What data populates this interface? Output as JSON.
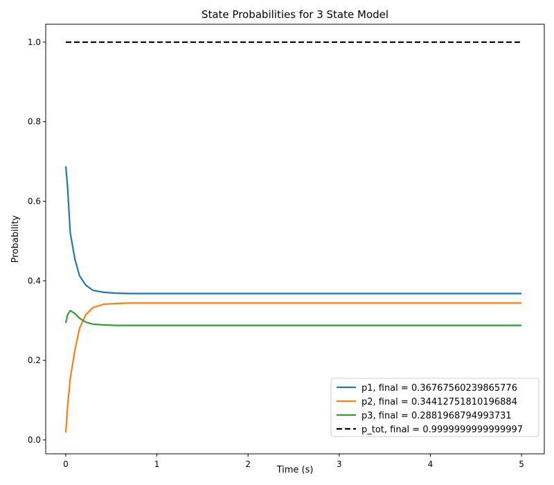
{
  "chart_data": {
    "type": "line",
    "title": "State Probabilities for 3 State Model",
    "xlabel": "Time (s)",
    "ylabel": "Probability",
    "xlim": [
      -0.22,
      5.25
    ],
    "ylim": [
      -0.035,
      1.045
    ],
    "xticks": [
      0,
      1,
      2,
      3,
      4,
      5
    ],
    "xtick_labels": [
      "0",
      "1",
      "2",
      "3",
      "4",
      "5"
    ],
    "yticks": [
      0.0,
      0.2,
      0.4,
      0.6,
      0.8,
      1.0
    ],
    "ytick_labels": [
      "0.0",
      "0.2",
      "0.4",
      "0.6",
      "0.8",
      "1.0"
    ],
    "grid": false,
    "legend_position": "lower-right",
    "series": [
      {
        "name": "p1, final = 0.36767560239865776",
        "color": "#1f77b4",
        "dash": "solid",
        "x": [
          0,
          0.02,
          0.05,
          0.1,
          0.15,
          0.22,
          0.3,
          0.42,
          0.55,
          0.7,
          1.0,
          1.5,
          2.0,
          2.5,
          3.0,
          3.5,
          4.0,
          4.5,
          5.0
        ],
        "y": [
          0.688,
          0.635,
          0.52,
          0.455,
          0.413,
          0.389,
          0.376,
          0.371,
          0.369,
          0.368,
          0.368,
          0.368,
          0.368,
          0.368,
          0.368,
          0.368,
          0.368,
          0.368,
          0.368
        ]
      },
      {
        "name": "p2, final = 0.34412751810196884",
        "color": "#ff7f0e",
        "dash": "solid",
        "x": [
          0,
          0.02,
          0.05,
          0.1,
          0.15,
          0.22,
          0.3,
          0.42,
          0.55,
          0.7,
          1.0,
          1.5,
          2.0,
          2.5,
          3.0,
          3.5,
          4.0,
          4.5,
          5.0
        ],
        "y": [
          0.018,
          0.085,
          0.155,
          0.225,
          0.28,
          0.315,
          0.333,
          0.341,
          0.343,
          0.344,
          0.344,
          0.344,
          0.344,
          0.344,
          0.344,
          0.344,
          0.344,
          0.344,
          0.344
        ]
      },
      {
        "name": "p3, final = 0.2881968794993731",
        "color": "#2ca02c",
        "dash": "solid",
        "x": [
          0,
          0.02,
          0.05,
          0.1,
          0.15,
          0.22,
          0.3,
          0.42,
          0.55,
          0.7,
          1.0,
          1.5,
          2.0,
          2.5,
          3.0,
          3.5,
          4.0,
          4.5,
          5.0
        ],
        "y": [
          0.294,
          0.315,
          0.325,
          0.318,
          0.306,
          0.296,
          0.291,
          0.289,
          0.288,
          0.288,
          0.288,
          0.288,
          0.288,
          0.288,
          0.288,
          0.288,
          0.288,
          0.288,
          0.288
        ]
      },
      {
        "name": "p_tot, final = 0.9999999999999997",
        "color": "#000000",
        "dash": "dashed",
        "x": [
          0,
          5.0
        ],
        "y": [
          1.0,
          1.0
        ]
      }
    ]
  }
}
